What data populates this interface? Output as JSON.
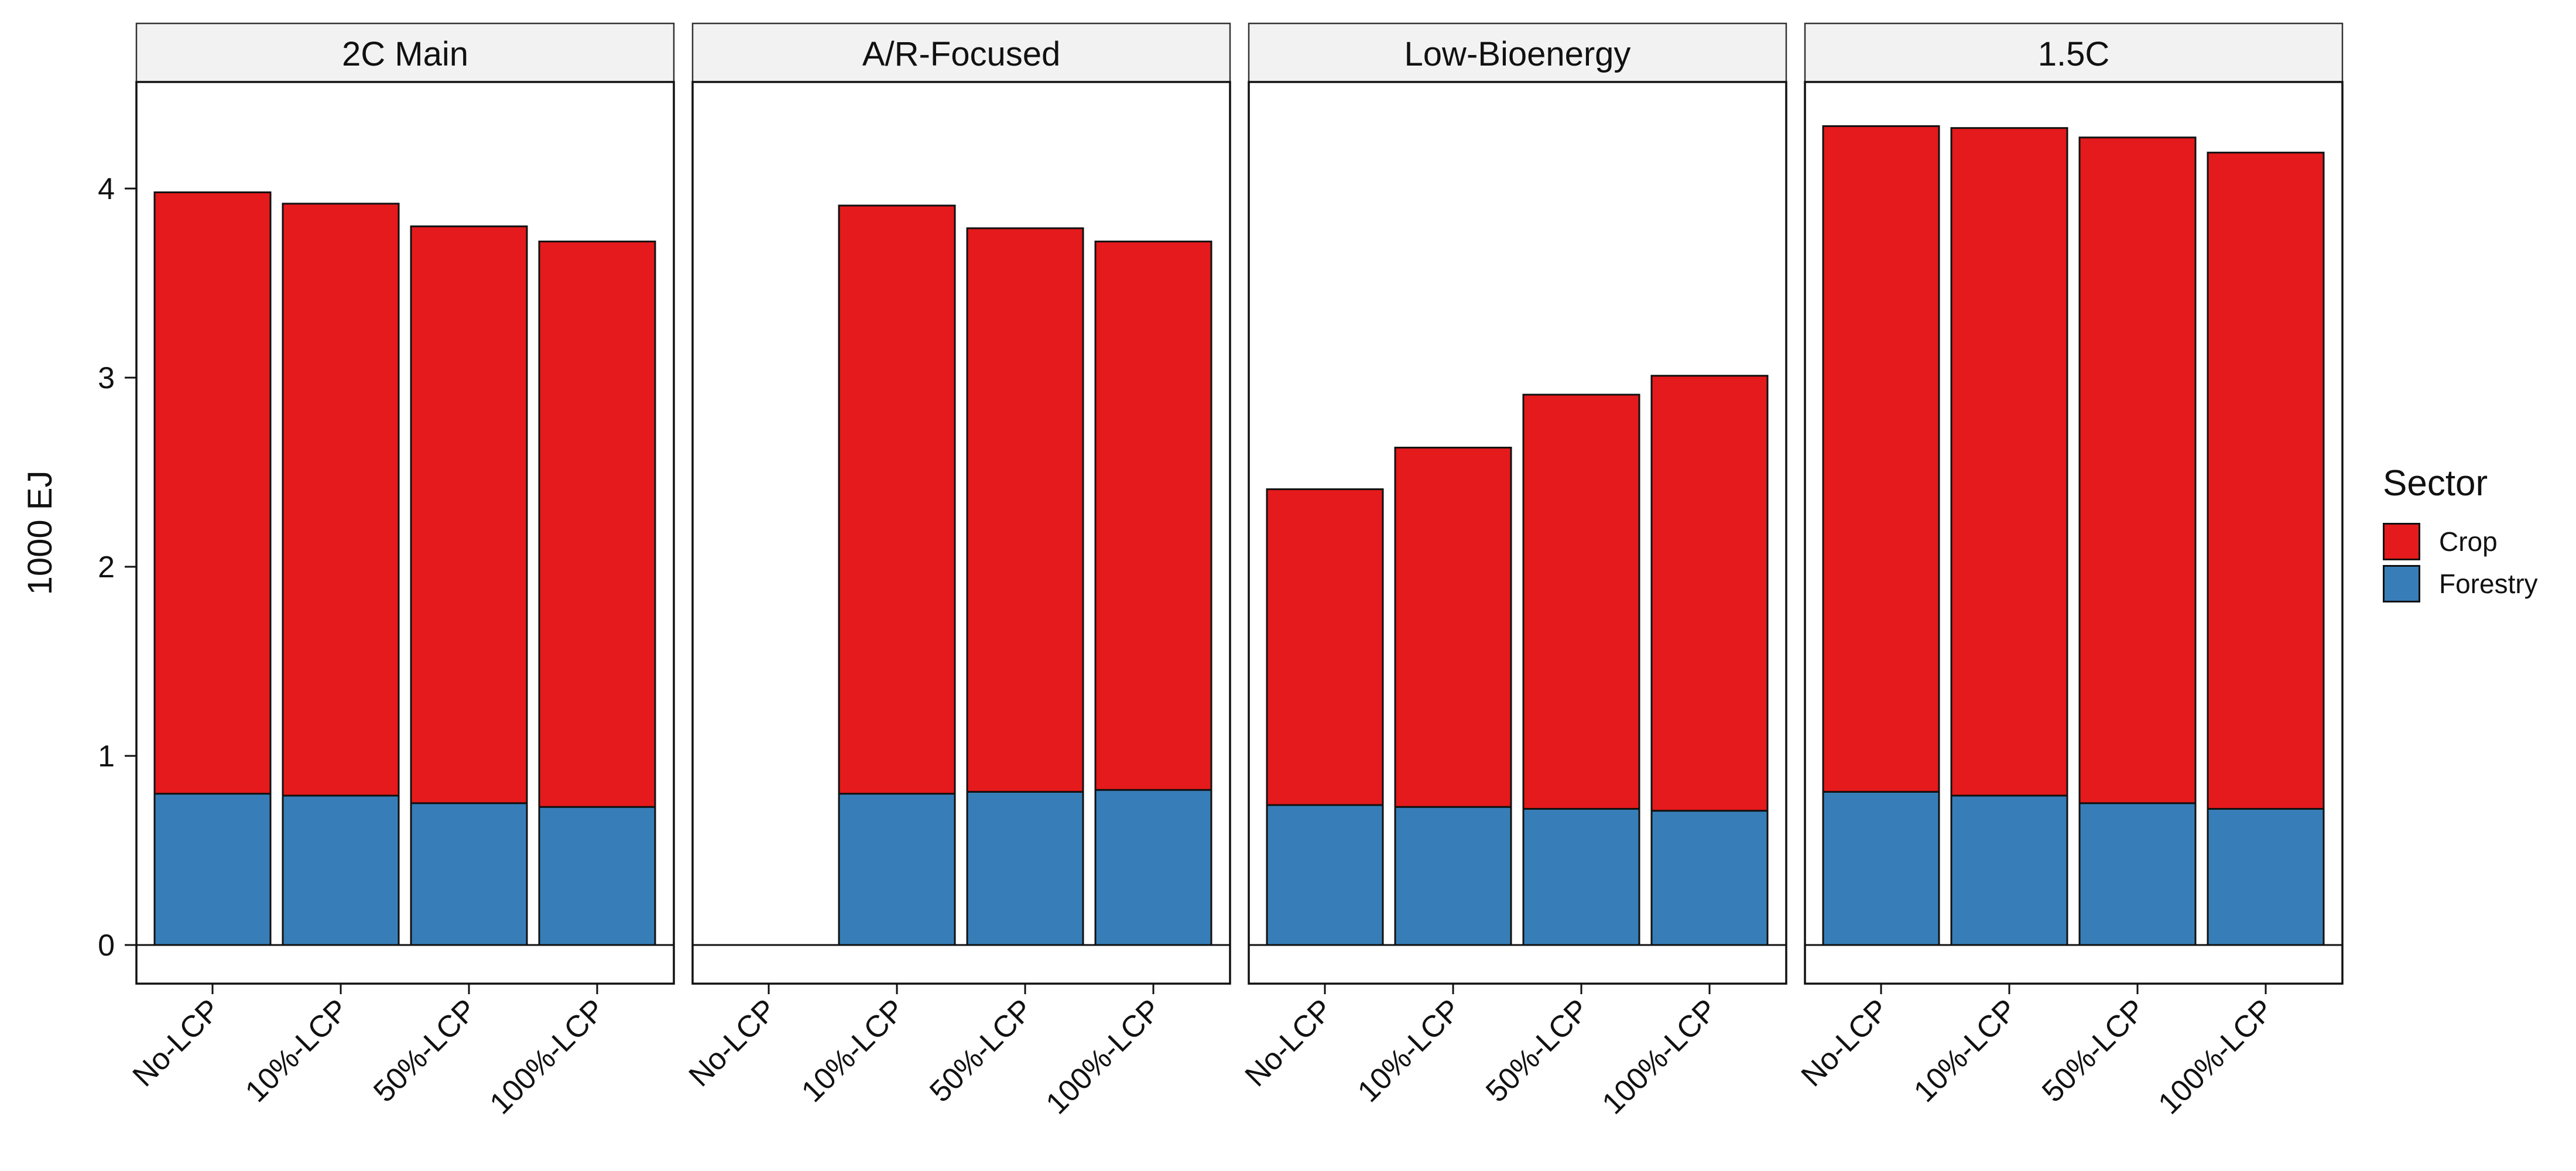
{
  "chart_data": {
    "type": "bar",
    "stacked": true,
    "ylabel": "1000 EJ",
    "ylim": [
      -0.2,
      4.75
    ],
    "yticks": [
      0,
      1,
      2,
      3,
      4
    ],
    "categories": [
      "No-LCP",
      "10%-LCP",
      "50%-LCP",
      "100%-LCP"
    ],
    "legend": {
      "title": "Sector",
      "position": "right",
      "items": [
        {
          "name": "Crop",
          "color": "#E41A1C"
        },
        {
          "name": "Forestry",
          "color": "#377EB8"
        }
      ]
    },
    "panels": [
      {
        "title": "2C Main",
        "series": [
          {
            "name": "Forestry",
            "values": [
              0.8,
              0.79,
              0.75,
              0.73
            ]
          },
          {
            "name": "Crop",
            "values": [
              3.18,
              3.13,
              3.05,
              2.99
            ]
          }
        ]
      },
      {
        "title": "A/R-Focused",
        "series": [
          {
            "name": "Forestry",
            "values": [
              0,
              0.8,
              0.81,
              0.82
            ]
          },
          {
            "name": "Crop",
            "values": [
              0,
              3.11,
              2.98,
              2.9
            ]
          }
        ]
      },
      {
        "title": "Low-Bioenergy",
        "series": [
          {
            "name": "Forestry",
            "values": [
              0.74,
              0.73,
              0.72,
              0.71
            ]
          },
          {
            "name": "Crop",
            "values": [
              1.67,
              1.9,
              2.19,
              2.3
            ]
          }
        ]
      },
      {
        "title": "1.5C",
        "series": [
          {
            "name": "Forestry",
            "values": [
              0.81,
              0.79,
              0.75,
              0.72
            ]
          },
          {
            "name": "Crop",
            "values": [
              3.52,
              3.53,
              3.52,
              3.47
            ]
          }
        ]
      }
    ],
    "grid": false
  }
}
